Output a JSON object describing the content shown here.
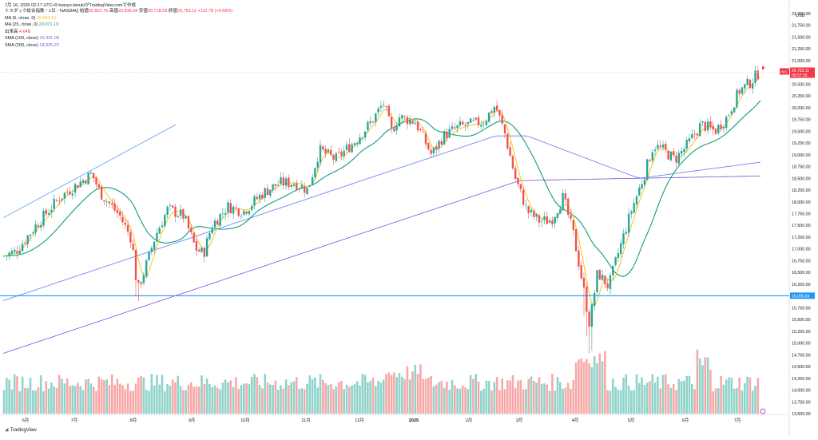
{
  "chart_data": {
    "type": "candlestick",
    "header": {
      "timestamp": "7月 16, 2025 02:17 UTC+9",
      "author": "toasyo-tanukiがTradingView.comで作成",
      "symbol": "ナスダック総合指数・1日・NASDAQ",
      "open_label": "始値",
      "open": "20,822.76",
      "high_label": "高値",
      "high": "20,836.04",
      "low_label": "安値",
      "low": "20,718.03",
      "close_label": "終値",
      "close": "20,753.11",
      "change": "+112.78 (+0.55%)"
    },
    "indicators": [
      {
        "label": "MA (5, close, 0)",
        "value": "20,664.15",
        "color": "#f5c518"
      },
      {
        "label": "MA (25, close, 0)",
        "value": "20,071.19",
        "color": "#139c7c"
      },
      {
        "label": "出来高",
        "value": "4.64B",
        "color": "#f23645"
      },
      {
        "label": "SMA (100, close)",
        "value": "18,491.08",
        "color": "#5b7cf5"
      },
      {
        "label": "SMA (200, close)",
        "value": "18,025.22",
        "color": "#7b4ee0"
      }
    ],
    "y_axis": {
      "unit": "USD",
      "ticks": [
        "22,000.00",
        "21,750.00",
        "21,500.00",
        "21,250.00",
        "21,000.00",
        "20,750.00",
        "20,500.00",
        "20,250.00",
        "20,000.00",
        "19,750.00",
        "19,500.00",
        "19,250.00",
        "19,000.00",
        "18,750.00",
        "18,500.00",
        "18,250.00",
        "18,000.00",
        "17,750.00",
        "17,500.00",
        "17,250.00",
        "17,000.00",
        "16,750.00",
        "16,500.00",
        "16,250.00",
        "16,000.00",
        "15,750.00",
        "15,500.00",
        "15,250.00",
        "15,000.00",
        "14,750.00",
        "14,500.00",
        "14,250.00",
        "14,000.00",
        "13,750.00",
        "13,500.00"
      ],
      "range": [
        13500,
        22000
      ]
    },
    "x_axis": {
      "ticks": [
        "6月",
        "7月",
        "8月",
        "9月",
        "10月",
        "11月",
        "12月",
        "2025",
        "2月",
        "3月",
        "4月",
        "5月",
        "6月",
        "7月"
      ]
    },
    "price_label": {
      "symbol": "IXIC",
      "value": "20,753.11",
      "countdown": "05:57:19",
      "color": "#f23645"
    },
    "horizontal_line": {
      "value": 16005.84,
      "label": "16,005.84",
      "color": "#2196f3"
    },
    "trend_line": {
      "color": "#5b9bf0"
    },
    "colors": {
      "up": "#26a69a",
      "down": "#ef5350",
      "up_vol": "#8fd3ca",
      "down_vol": "#f7a9a7"
    },
    "footer": "TradingView"
  }
}
